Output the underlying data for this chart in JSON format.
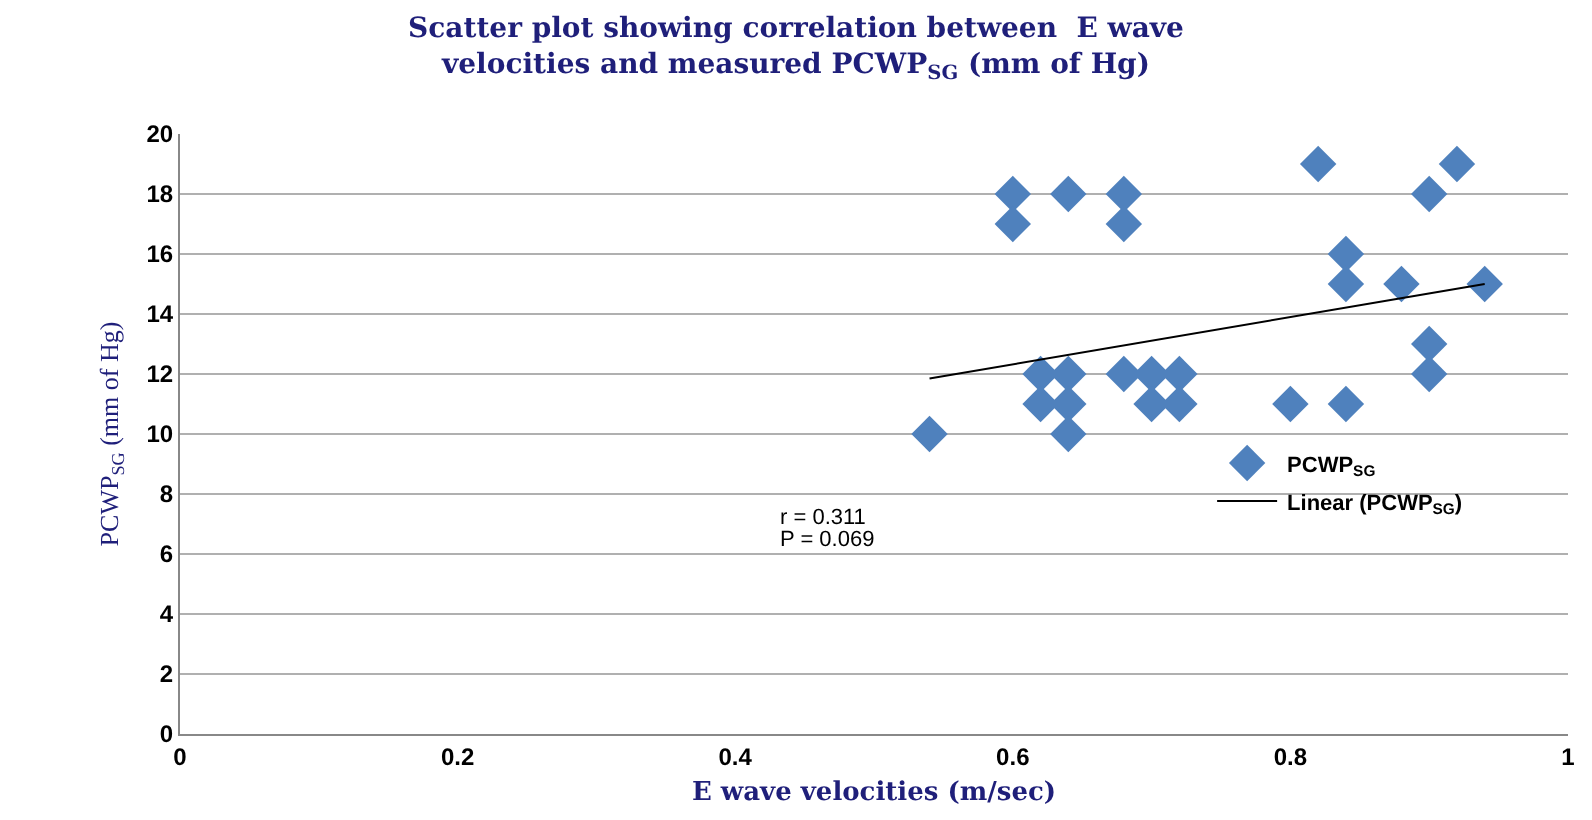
{
  "chart_data": {
    "type": "scatter",
    "title": "Scatter plot showing correlation between  E wave\nvelocities and measured PCWP$_{SG}$ (mm of Hg)",
    "xlabel": "E wave velocities (m/sec)",
    "ylabel": "PCWP$_{SG}$ (mm of Hg)",
    "annotations": [
      "r = 0.311",
      "P = 0.069"
    ],
    "series": [
      {
        "name": "PCWP$_{SG}$",
        "color": "#4f81bd",
        "marker": "diamond",
        "x": [
          0.54,
          0.6,
          0.6,
          0.64,
          0.68,
          0.68,
          0.62,
          0.64,
          0.68,
          0.7,
          0.72,
          0.62,
          0.64,
          0.7,
          0.72,
          0.64,
          0.8,
          0.84,
          0.82,
          0.92,
          0.9,
          0.84,
          0.84,
          0.88,
          0.94,
          0.9,
          0.9
        ],
        "values": [
          10,
          18,
          17,
          18,
          18,
          17,
          12,
          12,
          12,
          12,
          12,
          11,
          11,
          11,
          11,
          10,
          11,
          11,
          19,
          19,
          18,
          16,
          15,
          15,
          15,
          13,
          12
        ]
      },
      {
        "name": "Linear (PCWP$_{SG}$)",
        "type": "line",
        "color": "#000000",
        "marker": "none",
        "x": [
          0.54,
          0.94
        ],
        "values": [
          11.85,
          15
        ]
      }
    ],
    "xlim": [
      0,
      1
    ],
    "xticks": [
      0,
      0.2,
      0.4,
      0.6,
      0.8,
      1
    ],
    "ylim": [
      0,
      20
    ],
    "yticks": [
      0,
      2,
      4,
      6,
      8,
      10,
      12,
      14,
      16,
      18,
      20
    ],
    "grid": "y",
    "legend": "right"
  }
}
